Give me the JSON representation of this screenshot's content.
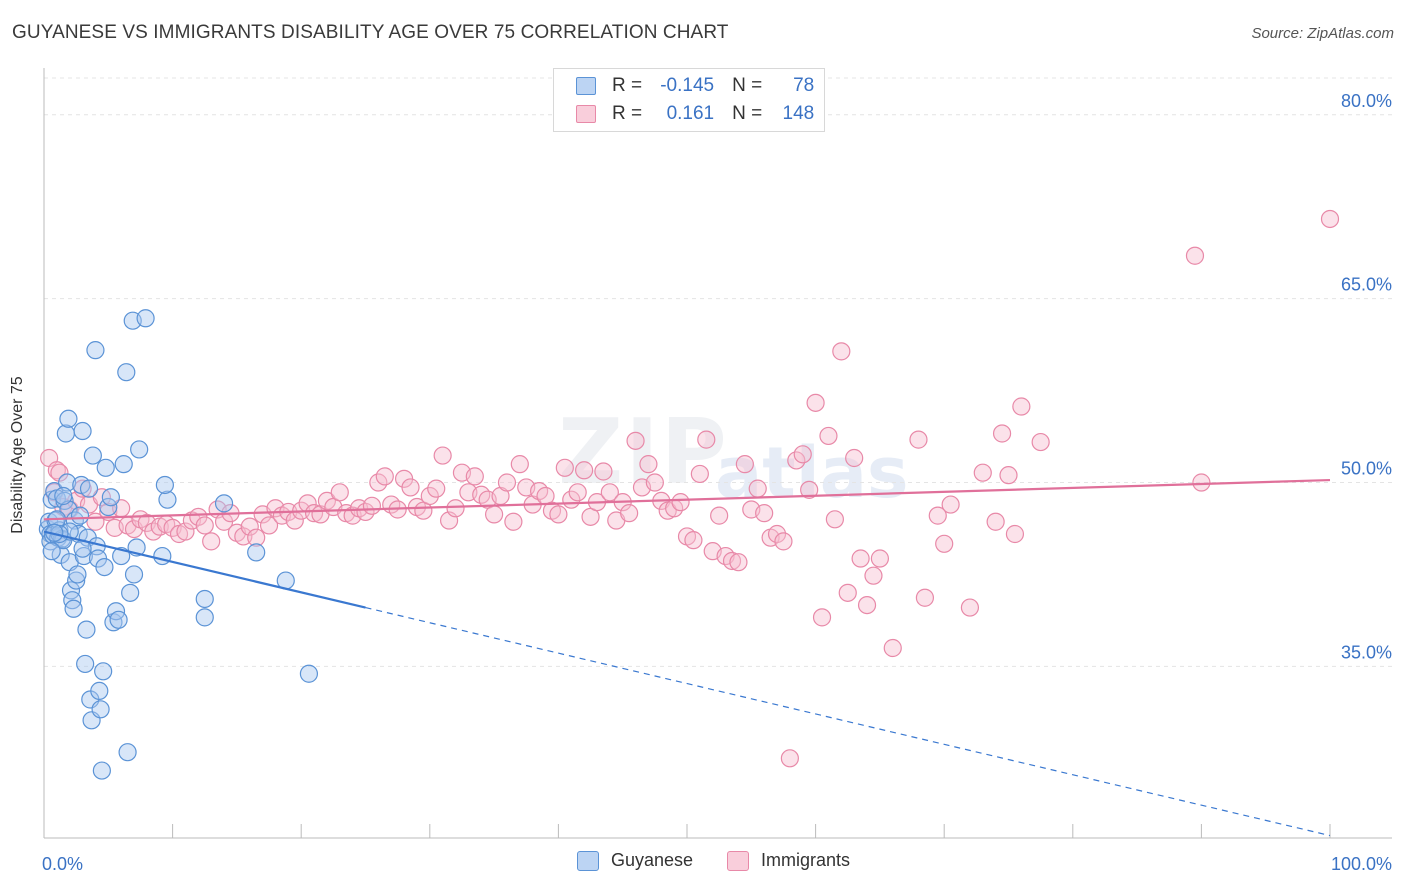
{
  "title": "GUYANESE VS IMMIGRANTS DISABILITY AGE OVER 75 CORRELATION CHART",
  "source": "Source: ZipAtlas.com",
  "watermark": {
    "zip": "ZIP",
    "atlas": "atlas"
  },
  "legend": {
    "rows": [
      {
        "r_label": "R =",
        "r_value": "-0.145",
        "n_label": "N =",
        "n_value": "78"
      },
      {
        "r_label": "R =",
        "r_value": "0.161",
        "n_label": "N =",
        "n_value": "148"
      }
    ]
  },
  "bottom_legend": [
    "Guyanese",
    "Immigrants"
  ],
  "colors": {
    "guyanese_fill": "#a9c8f0",
    "guyanese_stroke": "#5b93d6",
    "guyanese_line": "#3a78d0",
    "immigrants_fill": "#f6bfd0",
    "immigrants_stroke": "#e889a8",
    "immigrants_line": "#e0709a",
    "tick_label": "#3a72c4",
    "grid": "#e4e4e4"
  },
  "chart_data": {
    "type": "scatter",
    "title": "GUYANESE VS IMMIGRANTS DISABILITY AGE OVER 75 CORRELATION CHART",
    "xlabel": "",
    "ylabel": "Disability Age Over 75",
    "xlim": [
      0,
      100
    ],
    "ylim": [
      21,
      83
    ],
    "x_tick_labels": [
      "0.0%",
      "100.0%"
    ],
    "y_ticks": [
      35,
      50,
      65,
      80
    ],
    "y_tick_labels": [
      "35.0%",
      "50.0%",
      "65.0%",
      "80.0%"
    ],
    "grid": "horizontal dashed",
    "legend_position": "top-center",
    "series": [
      {
        "name": "Guyanese",
        "r": -0.145,
        "n": 78,
        "trend": {
          "x": [
            0,
            25
          ],
          "y": [
            46.0,
            39.8
          ],
          "dashed_to": [
            100,
            21.2
          ]
        },
        "points": [
          [
            0.3,
            46.2
          ],
          [
            0.4,
            46.8
          ],
          [
            0.5,
            45.8
          ],
          [
            0.5,
            45.2
          ],
          [
            0.6,
            48.6
          ],
          [
            0.7,
            45.7
          ],
          [
            0.8,
            49.3
          ],
          [
            0.9,
            46.9
          ],
          [
            1.0,
            48.7
          ],
          [
            1.1,
            45.5
          ],
          [
            1.2,
            46.1
          ],
          [
            1.3,
            44.1
          ],
          [
            1.4,
            45.4
          ],
          [
            1.5,
            45.3
          ],
          [
            1.6,
            48.5
          ],
          [
            1.7,
            54.0
          ],
          [
            1.8,
            50.0
          ],
          [
            1.9,
            55.2
          ],
          [
            1.9,
            47.8
          ],
          [
            2.0,
            43.5
          ],
          [
            2.1,
            41.2
          ],
          [
            2.2,
            40.4
          ],
          [
            2.3,
            39.7
          ],
          [
            2.4,
            46.9
          ],
          [
            2.5,
            42.0
          ],
          [
            2.6,
            42.5
          ],
          [
            2.7,
            45.8
          ],
          [
            2.8,
            47.3
          ],
          [
            2.9,
            49.8
          ],
          [
            3.0,
            54.2
          ],
          [
            3.1,
            44.0
          ],
          [
            3.2,
            35.2
          ],
          [
            3.3,
            38.0
          ],
          [
            3.4,
            45.5
          ],
          [
            3.5,
            49.5
          ],
          [
            3.6,
            32.3
          ],
          [
            3.7,
            30.6
          ],
          [
            3.8,
            52.2
          ],
          [
            4.0,
            60.8
          ],
          [
            4.1,
            44.8
          ],
          [
            4.2,
            43.8
          ],
          [
            4.3,
            33.0
          ],
          [
            4.4,
            31.5
          ],
          [
            4.5,
            26.5
          ],
          [
            4.6,
            34.6
          ],
          [
            4.7,
            43.1
          ],
          [
            4.8,
            51.2
          ],
          [
            5.0,
            48.0
          ],
          [
            5.2,
            48.8
          ],
          [
            5.4,
            38.6
          ],
          [
            5.6,
            39.5
          ],
          [
            5.8,
            38.8
          ],
          [
            6.0,
            44.0
          ],
          [
            6.2,
            51.5
          ],
          [
            6.4,
            59.0
          ],
          [
            6.5,
            28.0
          ],
          [
            6.7,
            41.0
          ],
          [
            6.9,
            63.2
          ],
          [
            7.0,
            42.5
          ],
          [
            7.2,
            44.7
          ],
          [
            7.4,
            52.7
          ],
          [
            7.9,
            63.4
          ],
          [
            9.2,
            44.0
          ],
          [
            9.6,
            48.6
          ],
          [
            9.4,
            49.8
          ],
          [
            12.5,
            40.5
          ],
          [
            12.5,
            39.0
          ],
          [
            14.0,
            48.3
          ],
          [
            16.5,
            44.3
          ],
          [
            18.8,
            42.0
          ],
          [
            20.6,
            34.4
          ],
          [
            0.6,
            44.4
          ],
          [
            1.0,
            47.0
          ],
          [
            1.5,
            48.9
          ],
          [
            2.0,
            46.0
          ],
          [
            3.0,
            44.6
          ],
          [
            1.2,
            45.8
          ],
          [
            0.8,
            45.9
          ]
        ]
      },
      {
        "name": "Immigrants",
        "r": 0.161,
        "n": 148,
        "trend": {
          "x": [
            0,
            100
          ],
          "y": [
            47.0,
            50.2
          ]
        },
        "points": [
          [
            0.4,
            52.0
          ],
          [
            0.8,
            49.2
          ],
          [
            1.0,
            51.0
          ],
          [
            1.2,
            50.8
          ],
          [
            1.5,
            48.0
          ],
          [
            2.0,
            47.8
          ],
          [
            2.5,
            48.5
          ],
          [
            3.0,
            49.5
          ],
          [
            3.5,
            48.2
          ],
          [
            4.0,
            46.8
          ],
          [
            4.5,
            48.8
          ],
          [
            5.0,
            47.6
          ],
          [
            5.5,
            46.3
          ],
          [
            6.0,
            47.9
          ],
          [
            6.5,
            46.5
          ],
          [
            7.0,
            46.2
          ],
          [
            7.5,
            47.0
          ],
          [
            8.0,
            46.7
          ],
          [
            8.5,
            46.0
          ],
          [
            9.0,
            46.4
          ],
          [
            9.5,
            46.6
          ],
          [
            10.0,
            46.3
          ],
          [
            10.5,
            45.8
          ],
          [
            11.0,
            46.0
          ],
          [
            11.5,
            46.9
          ],
          [
            12.0,
            47.2
          ],
          [
            12.5,
            46.5
          ],
          [
            13.0,
            45.2
          ],
          [
            13.5,
            47.8
          ],
          [
            14.0,
            46.8
          ],
          [
            14.5,
            47.5
          ],
          [
            15.0,
            45.9
          ],
          [
            15.5,
            45.6
          ],
          [
            16.0,
            46.4
          ],
          [
            16.5,
            45.5
          ],
          [
            17.0,
            47.4
          ],
          [
            17.5,
            46.5
          ],
          [
            18.0,
            47.9
          ],
          [
            18.5,
            47.3
          ],
          [
            19.0,
            47.6
          ],
          [
            19.5,
            46.9
          ],
          [
            20.0,
            47.7
          ],
          [
            20.5,
            48.3
          ],
          [
            21.0,
            47.5
          ],
          [
            21.5,
            47.4
          ],
          [
            22.0,
            48.5
          ],
          [
            22.5,
            48.0
          ],
          [
            23.0,
            49.2
          ],
          [
            23.5,
            47.5
          ],
          [
            24.0,
            47.3
          ],
          [
            24.5,
            47.9
          ],
          [
            25.0,
            47.6
          ],
          [
            25.5,
            48.1
          ],
          [
            26.0,
            50.0
          ],
          [
            26.5,
            50.5
          ],
          [
            27.0,
            48.2
          ],
          [
            27.5,
            47.8
          ],
          [
            28.0,
            50.3
          ],
          [
            28.5,
            49.6
          ],
          [
            29.0,
            48.0
          ],
          [
            29.5,
            47.7
          ],
          [
            30.0,
            48.9
          ],
          [
            30.5,
            49.5
          ],
          [
            31.0,
            52.2
          ],
          [
            31.5,
            46.9
          ],
          [
            32.0,
            47.9
          ],
          [
            32.5,
            50.8
          ],
          [
            33.0,
            49.2
          ],
          [
            33.5,
            50.5
          ],
          [
            34.0,
            49.0
          ],
          [
            34.5,
            48.6
          ],
          [
            35.0,
            47.4
          ],
          [
            35.5,
            48.9
          ],
          [
            36.0,
            50.0
          ],
          [
            36.5,
            46.8
          ],
          [
            37.0,
            51.5
          ],
          [
            37.5,
            49.6
          ],
          [
            38.0,
            48.2
          ],
          [
            38.5,
            49.3
          ],
          [
            39.0,
            48.9
          ],
          [
            39.5,
            47.7
          ],
          [
            40.0,
            47.4
          ],
          [
            40.5,
            51.2
          ],
          [
            41.0,
            48.6
          ],
          [
            41.5,
            49.2
          ],
          [
            42.0,
            51.0
          ],
          [
            42.5,
            47.2
          ],
          [
            43.0,
            48.4
          ],
          [
            43.5,
            50.9
          ],
          [
            44.0,
            49.2
          ],
          [
            44.5,
            46.9
          ],
          [
            45.0,
            48.4
          ],
          [
            45.5,
            47.5
          ],
          [
            46.0,
            53.4
          ],
          [
            46.5,
            49.6
          ],
          [
            47.0,
            51.5
          ],
          [
            47.5,
            50.0
          ],
          [
            48.0,
            48.5
          ],
          [
            48.5,
            47.7
          ],
          [
            49.0,
            47.9
          ],
          [
            49.5,
            48.4
          ],
          [
            50.0,
            45.6
          ],
          [
            50.5,
            45.3
          ],
          [
            51.0,
            50.7
          ],
          [
            51.5,
            53.5
          ],
          [
            52.0,
            44.4
          ],
          [
            52.5,
            47.3
          ],
          [
            53.0,
            44.0
          ],
          [
            53.5,
            43.6
          ],
          [
            54.0,
            43.5
          ],
          [
            54.5,
            51.5
          ],
          [
            55.0,
            47.8
          ],
          [
            55.5,
            49.5
          ],
          [
            56.0,
            47.5
          ],
          [
            56.5,
            45.5
          ],
          [
            57.0,
            45.8
          ],
          [
            57.5,
            45.2
          ],
          [
            58.0,
            27.5
          ],
          [
            58.5,
            51.8
          ],
          [
            59.0,
            52.3
          ],
          [
            59.5,
            49.4
          ],
          [
            60.0,
            56.5
          ],
          [
            60.5,
            39.0
          ],
          [
            61.0,
            53.8
          ],
          [
            61.5,
            47.0
          ],
          [
            62.0,
            60.7
          ],
          [
            62.5,
            41.0
          ],
          [
            63.0,
            52.0
          ],
          [
            63.5,
            43.8
          ],
          [
            64.0,
            40.0
          ],
          [
            64.5,
            42.4
          ],
          [
            65.0,
            43.8
          ],
          [
            66.0,
            36.5
          ],
          [
            68.0,
            53.5
          ],
          [
            68.5,
            40.6
          ],
          [
            69.5,
            47.3
          ],
          [
            70.0,
            45.0
          ],
          [
            70.5,
            48.2
          ],
          [
            72.0,
            39.8
          ],
          [
            73.0,
            50.8
          ],
          [
            74.0,
            46.8
          ],
          [
            74.5,
            54.0
          ],
          [
            75.0,
            50.6
          ],
          [
            75.5,
            45.8
          ],
          [
            76.0,
            56.2
          ],
          [
            77.5,
            53.3
          ],
          [
            89.5,
            68.5
          ],
          [
            90.0,
            50.0
          ]
        ]
      }
    ],
    "extra_points_immigrants": [
      [
        100,
        71.5
      ]
    ]
  }
}
